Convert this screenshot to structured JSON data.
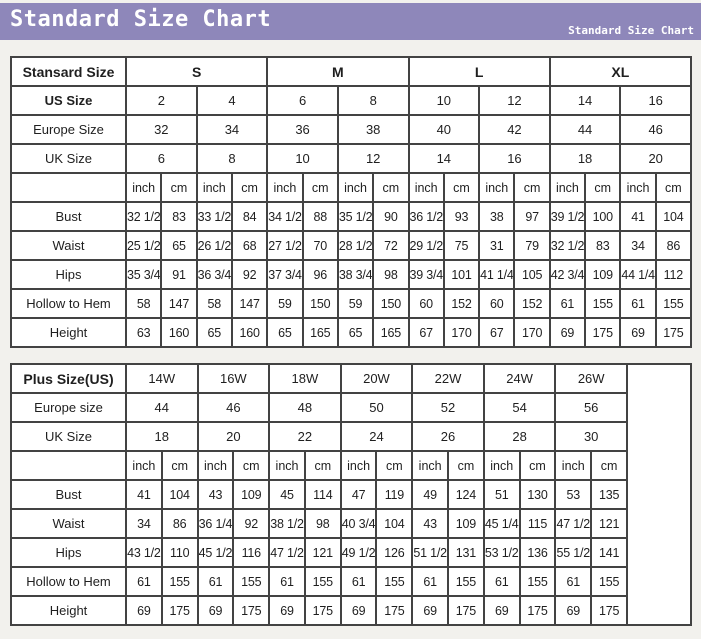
{
  "header": {
    "title": "Standard Size Chart",
    "subtitle": "Standard Size Chart"
  },
  "colors": {
    "header_bg": "#8e87ba",
    "page_bg": "#f2f1ed",
    "border": "#434343",
    "cell_bg": "#ffffff",
    "title_color": "#ffffff"
  },
  "units": [
    "inch",
    "cm"
  ],
  "chart_data": [
    {
      "type": "table",
      "name": "standard-size-table",
      "corner_label": "Stansard Size",
      "sizes": [
        "S",
        "M",
        "L",
        "XL"
      ],
      "size_rows": [
        {
          "label": "US Size",
          "values": [
            "2",
            "4",
            "6",
            "8",
            "10",
            "12",
            "14",
            "16"
          ]
        },
        {
          "label": "Europe Size",
          "values": [
            "32",
            "34",
            "36",
            "38",
            "40",
            "42",
            "44",
            "46"
          ]
        },
        {
          "label": "UK Size",
          "values": [
            "6",
            "8",
            "10",
            "12",
            "14",
            "16",
            "18",
            "20"
          ]
        }
      ],
      "measure_rows": [
        {
          "label": "Bust",
          "values": [
            "32 1/2",
            "83",
            "33 1/2",
            "84",
            "34 1/2",
            "88",
            "35 1/2",
            "90",
            "36 1/2",
            "93",
            "38",
            "97",
            "39 1/2",
            "100",
            "41",
            "104"
          ]
        },
        {
          "label": "Waist",
          "values": [
            "25 1/2",
            "65",
            "26 1/2",
            "68",
            "27 1/2",
            "70",
            "28 1/2",
            "72",
            "29 1/2",
            "75",
            "31",
            "79",
            "32 1/2",
            "83",
            "34",
            "86"
          ]
        },
        {
          "label": "Hips",
          "values": [
            "35 3/4",
            "91",
            "36 3/4",
            "92",
            "37 3/4",
            "96",
            "38 3/4",
            "98",
            "39 3/4",
            "101",
            "41 1/4",
            "105",
            "42 3/4",
            "109",
            "44 1/4",
            "112"
          ]
        },
        {
          "label": "Hollow to Hem",
          "values": [
            "58",
            "147",
            "58",
            "147",
            "59",
            "150",
            "59",
            "150",
            "60",
            "152",
            "60",
            "152",
            "61",
            "155",
            "61",
            "155"
          ]
        },
        {
          "label": "Height",
          "values": [
            "63",
            "160",
            "65",
            "160",
            "65",
            "165",
            "65",
            "165",
            "67",
            "170",
            "67",
            "170",
            "69",
            "175",
            "69",
            "175"
          ]
        }
      ]
    },
    {
      "type": "table",
      "name": "plus-size-table",
      "corner_label": "Plus Size(US)",
      "sizes": [
        "14W",
        "16W",
        "18W",
        "20W",
        "22W",
        "24W",
        "26W"
      ],
      "size_rows": [
        {
          "label": "Europe size",
          "values": [
            "44",
            "46",
            "48",
            "50",
            "52",
            "54",
            "56"
          ]
        },
        {
          "label": "UK Size",
          "values": [
            "18",
            "20",
            "22",
            "24",
            "26",
            "28",
            "30"
          ]
        }
      ],
      "measure_rows": [
        {
          "label": "Bust",
          "values": [
            "41",
            "104",
            "43",
            "109",
            "45",
            "114",
            "47",
            "119",
            "49",
            "124",
            "51",
            "130",
            "53",
            "135"
          ]
        },
        {
          "label": "Waist",
          "values": [
            "34",
            "86",
            "36 1/4",
            "92",
            "38 1/2",
            "98",
            "40 3/4",
            "104",
            "43",
            "109",
            "45 1/4",
            "115",
            "47 1/2",
            "121"
          ]
        },
        {
          "label": "Hips",
          "values": [
            "43 1/2",
            "110",
            "45 1/2",
            "116",
            "47 1/2",
            "121",
            "49 1/2",
            "126",
            "51 1/2",
            "131",
            "53 1/2",
            "136",
            "55 1/2",
            "141"
          ]
        },
        {
          "label": "Hollow to Hem",
          "values": [
            "61",
            "155",
            "61",
            "155",
            "61",
            "155",
            "61",
            "155",
            "61",
            "155",
            "61",
            "155",
            "61",
            "155"
          ]
        },
        {
          "label": "Height",
          "values": [
            "69",
            "175",
            "69",
            "175",
            "69",
            "175",
            "69",
            "175",
            "69",
            "175",
            "69",
            "175",
            "69",
            "175"
          ]
        }
      ]
    }
  ]
}
